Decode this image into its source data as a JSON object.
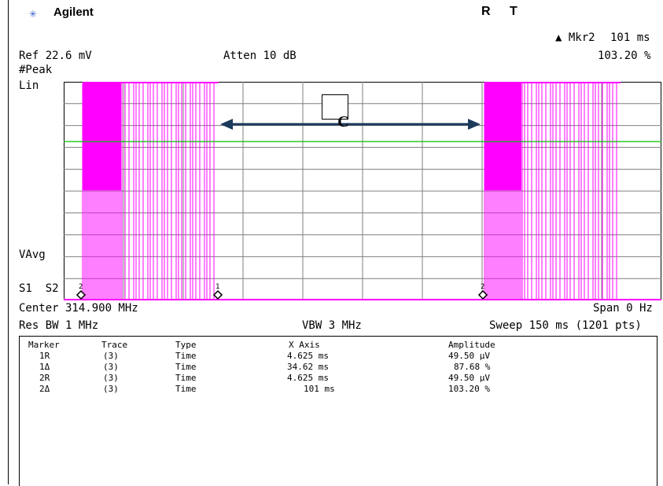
{
  "header": {
    "brand": "Agilent",
    "brand_icon": "agilent-spark-icon",
    "status_r": "R",
    "status_t": "T",
    "marker_label": "▲ Mkr2",
    "marker_time": "101 ms",
    "marker_value": "103.20 %"
  },
  "settings": {
    "ref": "Ref 22.6 mV",
    "atten": "Atten 10 dB",
    "detector": "#Peak",
    "scale": "Lin",
    "vavg": "VAvg",
    "s1s2": "S1  S2",
    "center": "Center 314.900 MHz",
    "span": "Span 0 Hz",
    "res_bw": "Res BW 1 MHz",
    "vbw": "VBW 3 MHz",
    "sweep": "Sweep 150 ms (1201 pts)"
  },
  "annotation": {
    "label": "C"
  },
  "colors": {
    "trace": "#ff00ff",
    "threshold": "#00c000",
    "arrow": "#1c3a5c",
    "grid": "#7f7f7f"
  },
  "marker_table": {
    "headers": [
      "Marker",
      "Trace",
      "Type",
      "X Axis",
      "Amplitude"
    ],
    "rows": [
      [
        "1R",
        "(3)",
        "Time",
        "4.625 ms",
        "49.50 µV"
      ],
      [
        "1Δ",
        "(3)",
        "Time",
        "34.62 ms",
        "87.68 %"
      ],
      [
        "2R",
        "(3)",
        "Time",
        "4.625 ms",
        "49.50 µV"
      ],
      [
        "2Δ",
        "(3)",
        "Time",
        "101 ms",
        "103.20 %"
      ]
    ]
  },
  "plot_markers": [
    "2",
    "1",
    "2"
  ]
}
